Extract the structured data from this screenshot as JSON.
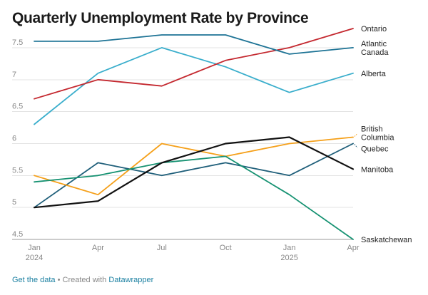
{
  "title": "Quarterly Unemployment Rate by Province",
  "footer": {
    "get_data_label": "Get the data",
    "separator": " • Created with ",
    "datawrapper_label": "Datawrapper"
  },
  "chart_data": {
    "type": "line",
    "x": [
      "Jan 2024",
      "Apr 2024",
      "Jul 2024",
      "Oct 2024",
      "Jan 2025",
      "Apr 2025"
    ],
    "x_tick_labels": [
      {
        "month": "Jan",
        "year": "2024"
      },
      {
        "month": "Apr",
        "year": ""
      },
      {
        "month": "Jul",
        "year": ""
      },
      {
        "month": "Oct",
        "year": ""
      },
      {
        "month": "Jan",
        "year": "2025"
      },
      {
        "month": "Apr",
        "year": ""
      }
    ],
    "ylim": [
      4.5,
      7.8
    ],
    "y_ticks": [
      4.5,
      5,
      5.5,
      6,
      6.5,
      7,
      7.5
    ],
    "y_tick_labels": [
      "4.5",
      "5",
      "5.5",
      "6",
      "6.5",
      "7",
      "7.5"
    ],
    "grid": true,
    "series": [
      {
        "name": "Ontario",
        "label_lines": [
          "Ontario"
        ],
        "color": "#c4282f",
        "values": [
          6.7,
          7.0,
          6.9,
          7.3,
          7.5,
          7.8
        ]
      },
      {
        "name": "Atlantic Canada",
        "label_lines": [
          "Atlantic",
          "Canada"
        ],
        "color": "#1d7395",
        "values": [
          7.6,
          7.6,
          7.7,
          7.7,
          7.4,
          7.5
        ]
      },
      {
        "name": "Alberta",
        "label_lines": [
          "Alberta"
        ],
        "color": "#3aaecc",
        "values": [
          6.3,
          7.1,
          7.5,
          7.2,
          6.8,
          7.1
        ]
      },
      {
        "name": "British Columbia",
        "label_lines": [
          "British",
          "Columbia"
        ],
        "color": "#f5a01a",
        "values": [
          5.5,
          5.2,
          6.0,
          5.8,
          6.0,
          6.1
        ]
      },
      {
        "name": "Quebec",
        "label_lines": [
          "Quebec"
        ],
        "color": "#1f5f7a",
        "values": [
          5.0,
          5.7,
          5.5,
          5.7,
          5.5,
          6.0
        ]
      },
      {
        "name": "Manitoba",
        "label_lines": [
          "Manitoba"
        ],
        "color": "#111111",
        "values": [
          5.0,
          5.1,
          5.7,
          6.0,
          6.1,
          5.6
        ]
      },
      {
        "name": "Saskatchewan",
        "label_lines": [
          "Saskatchewan"
        ],
        "color": "#169272",
        "values": [
          5.4,
          5.5,
          5.7,
          5.8,
          5.2,
          4.5
        ]
      }
    ]
  }
}
